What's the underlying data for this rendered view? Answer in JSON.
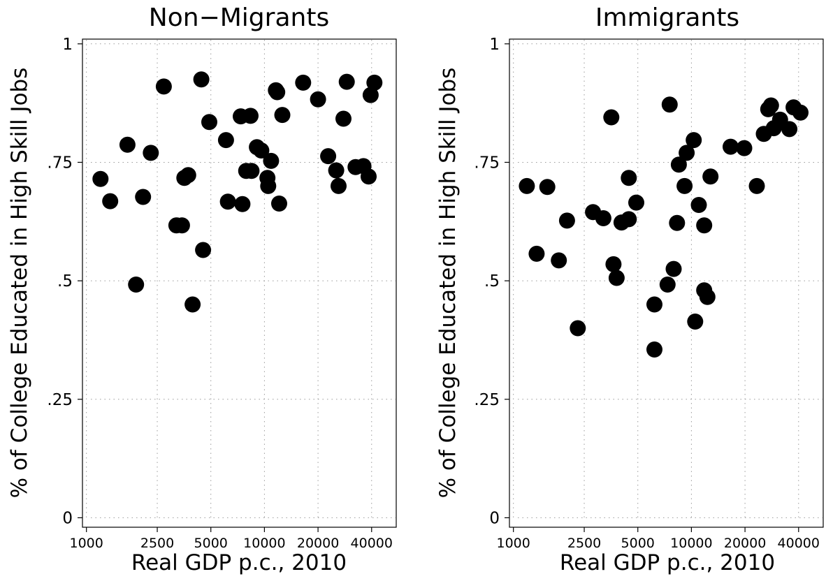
{
  "chart_data": [
    {
      "type": "scatter",
      "title": "Non−Migrants",
      "xlabel": "Real GDP p.c., 2010",
      "ylabel": "% of College Educated in High Skill Jobs",
      "x_scale": "log",
      "xlim": [
        950,
        55000
      ],
      "ylim": [
        -0.02,
        1.01
      ],
      "xticks": [
        1000,
        2500,
        5000,
        10000,
        20000,
        40000
      ],
      "xtick_labels": [
        "1000",
        "2500",
        "5000",
        "10000",
        "20000",
        "40000"
      ],
      "yticks": [
        0,
        0.25,
        0.5,
        0.75,
        1
      ],
      "ytick_labels": [
        "0",
        ".25",
        ".5",
        ".75",
        "1"
      ],
      "grid": true,
      "marker_color": "#000000",
      "points": [
        [
          1200,
          0.715
        ],
        [
          1360,
          0.668
        ],
        [
          1700,
          0.787
        ],
        [
          1900,
          0.492
        ],
        [
          2080,
          0.677
        ],
        [
          2300,
          0.77
        ],
        [
          2720,
          0.91
        ],
        [
          3200,
          0.617
        ],
        [
          3440,
          0.617
        ],
        [
          3550,
          0.717
        ],
        [
          3730,
          0.723
        ],
        [
          3950,
          0.45
        ],
        [
          4420,
          0.925
        ],
        [
          4520,
          0.565
        ],
        [
          4900,
          0.835
        ],
        [
          6080,
          0.797
        ],
        [
          6230,
          0.667
        ],
        [
          7360,
          0.847
        ],
        [
          7520,
          0.662
        ],
        [
          7900,
          0.732
        ],
        [
          8350,
          0.848
        ],
        [
          8460,
          0.732
        ],
        [
          9070,
          0.782
        ],
        [
          9600,
          0.775
        ],
        [
          10400,
          0.717
        ],
        [
          10500,
          0.7
        ],
        [
          10900,
          0.753
        ],
        [
          11600,
          0.902
        ],
        [
          11800,
          0.898
        ],
        [
          12100,
          0.663
        ],
        [
          12600,
          0.85
        ],
        [
          16500,
          0.918
        ],
        [
          20000,
          0.883
        ],
        [
          22800,
          0.763
        ],
        [
          25300,
          0.733
        ],
        [
          26100,
          0.7
        ],
        [
          27800,
          0.842
        ],
        [
          29000,
          0.92
        ],
        [
          32500,
          0.74
        ],
        [
          36000,
          0.742
        ],
        [
          38500,
          0.72
        ],
        [
          39500,
          0.892
        ],
        [
          41500,
          0.918
        ]
      ]
    },
    {
      "type": "scatter",
      "title": "Immigrants",
      "xlabel": "Real GDP p.c., 2010",
      "ylabel": "% of College Educated in High Skill Jobs",
      "x_scale": "log",
      "xlim": [
        950,
        55000
      ],
      "ylim": [
        -0.02,
        1.01
      ],
      "xticks": [
        1000,
        2500,
        5000,
        10000,
        20000,
        40000
      ],
      "xtick_labels": [
        "1000",
        "2500",
        "5000",
        "10000",
        "20000",
        "40000"
      ],
      "yticks": [
        0,
        0.25,
        0.5,
        0.75,
        1
      ],
      "ytick_labels": [
        "0",
        ".25",
        ".5",
        ".75",
        "1"
      ],
      "grid": true,
      "marker_color": "#000000",
      "points": [
        [
          1190,
          0.7
        ],
        [
          1350,
          0.557
        ],
        [
          1550,
          0.698
        ],
        [
          1800,
          0.543
        ],
        [
          2000,
          0.627
        ],
        [
          2300,
          0.4
        ],
        [
          2800,
          0.645
        ],
        [
          3200,
          0.632
        ],
        [
          3550,
          0.845
        ],
        [
          3650,
          0.535
        ],
        [
          3800,
          0.506
        ],
        [
          4050,
          0.623
        ],
        [
          4450,
          0.63
        ],
        [
          4450,
          0.717
        ],
        [
          4900,
          0.665
        ],
        [
          6200,
          0.45
        ],
        [
          6200,
          0.355
        ],
        [
          7350,
          0.492
        ],
        [
          7550,
          0.872
        ],
        [
          7950,
          0.525
        ],
        [
          8300,
          0.622
        ],
        [
          8500,
          0.745
        ],
        [
          9150,
          0.7
        ],
        [
          9400,
          0.77
        ],
        [
          10300,
          0.797
        ],
        [
          10500,
          0.414
        ],
        [
          11000,
          0.66
        ],
        [
          11800,
          0.617
        ],
        [
          11800,
          0.48
        ],
        [
          12300,
          0.466
        ],
        [
          12800,
          0.72
        ],
        [
          16600,
          0.783
        ],
        [
          19800,
          0.78
        ],
        [
          23300,
          0.7
        ],
        [
          25500,
          0.81
        ],
        [
          27000,
          0.862
        ],
        [
          28000,
          0.87
        ],
        [
          29000,
          0.822
        ],
        [
          31500,
          0.84
        ],
        [
          35500,
          0.82
        ],
        [
          37500,
          0.866
        ],
        [
          41000,
          0.855
        ]
      ]
    }
  ]
}
